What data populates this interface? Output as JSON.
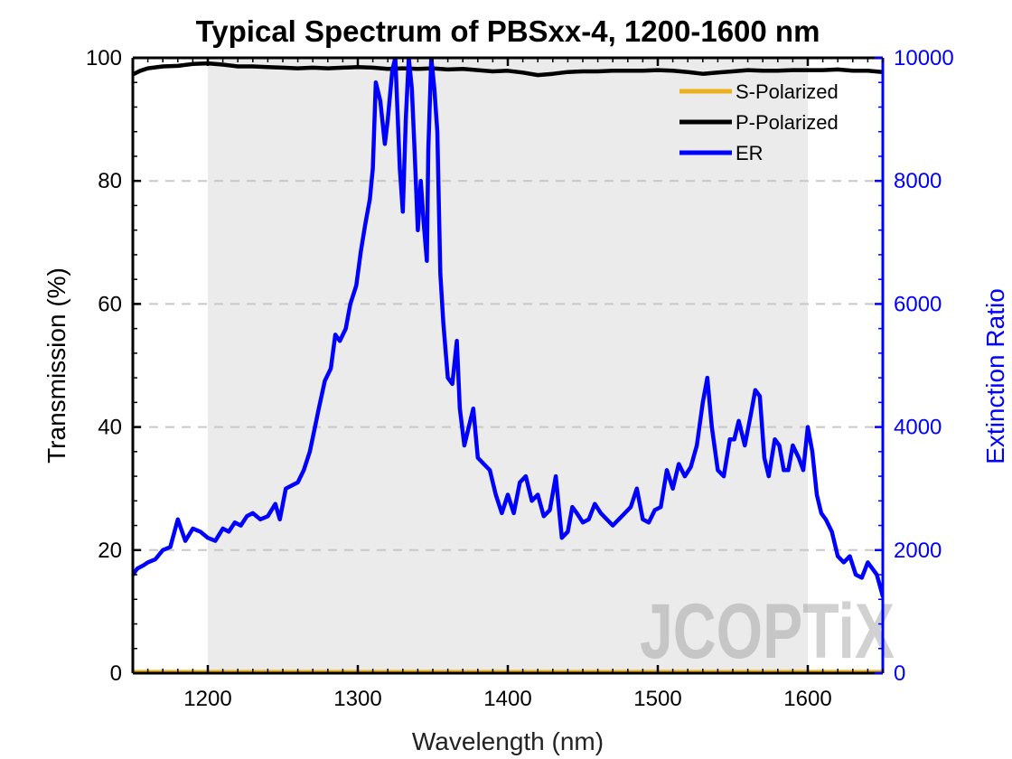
{
  "chart_data": {
    "type": "line",
    "title": "Typical Spectrum of PBSxx-4, 1200-1600 nm",
    "xlabel": "Wavelength (nm)",
    "ylabel_left": "Transmission (%)",
    "ylabel_right": "Extinction Ratio",
    "xlim": [
      1150,
      1650
    ],
    "ylim_left": [
      0,
      100
    ],
    "ylim_right": [
      0,
      10000
    ],
    "x_ticks": [
      1200,
      1300,
      1400,
      1500,
      1600
    ],
    "y_ticks_left": [
      0,
      20,
      40,
      60,
      80,
      100
    ],
    "y_ticks_right": [
      0,
      2000,
      4000,
      6000,
      8000,
      10000
    ],
    "grid": "horizontal dashed",
    "legend_position": "top-right",
    "shaded_band": [
      1200,
      1600
    ],
    "colors": {
      "s_polarized": "#edb120",
      "p_polarized": "#000000",
      "er": "#0000ff",
      "right_axis": "#0000ff",
      "shaded_band": "#ebebeb",
      "grid": "#c8c8c8"
    },
    "series": [
      {
        "name": "S-Polarized",
        "axis": "left",
        "x": [
          1150,
          1650
        ],
        "values": [
          0.2,
          0.2
        ]
      },
      {
        "name": "P-Polarized",
        "axis": "left",
        "x": [
          1150,
          1155,
          1160,
          1170,
          1180,
          1190,
          1200,
          1210,
          1220,
          1230,
          1240,
          1250,
          1260,
          1270,
          1280,
          1290,
          1300,
          1310,
          1320,
          1330,
          1340,
          1350,
          1360,
          1370,
          1380,
          1390,
          1400,
          1410,
          1420,
          1430,
          1440,
          1450,
          1460,
          1470,
          1480,
          1490,
          1500,
          1510,
          1520,
          1530,
          1540,
          1550,
          1560,
          1570,
          1580,
          1590,
          1600,
          1610,
          1620,
          1630,
          1640,
          1650
        ],
        "values": [
          97.3,
          97.9,
          98.3,
          98.6,
          98.7,
          99.0,
          99.1,
          98.9,
          98.6,
          98.6,
          98.5,
          98.4,
          98.3,
          98.4,
          98.3,
          98.4,
          98.5,
          98.4,
          98.2,
          98.3,
          98.2,
          98.3,
          98.1,
          98.2,
          98.0,
          97.8,
          97.9,
          97.6,
          97.2,
          97.4,
          97.7,
          97.8,
          97.8,
          97.9,
          97.9,
          97.9,
          98.0,
          97.9,
          97.7,
          97.4,
          97.6,
          97.8,
          98.0,
          97.9,
          97.9,
          98.0,
          98.0,
          98.0,
          98.1,
          97.9,
          97.9,
          97.7
        ]
      },
      {
        "name": "ER",
        "axis": "right",
        "x": [
          1150,
          1153,
          1157,
          1160,
          1165,
          1170,
          1175,
          1180,
          1185,
          1190,
          1195,
          1200,
          1205,
          1210,
          1214,
          1218,
          1222,
          1226,
          1230,
          1235,
          1240,
          1245,
          1248,
          1252,
          1256,
          1260,
          1264,
          1268,
          1271,
          1274,
          1278,
          1282,
          1285,
          1288,
          1292,
          1295,
          1299,
          1302,
          1305,
          1308,
          1310,
          1312,
          1315,
          1318,
          1320,
          1323,
          1325,
          1328,
          1330,
          1332,
          1334,
          1336,
          1338,
          1340,
          1342,
          1344,
          1346,
          1347,
          1349,
          1351,
          1353,
          1355,
          1357,
          1360,
          1363,
          1366,
          1368,
          1371,
          1374,
          1377,
          1380,
          1384,
          1388,
          1392,
          1396,
          1400,
          1404,
          1408,
          1412,
          1416,
          1420,
          1424,
          1428,
          1432,
          1436,
          1440,
          1443,
          1446,
          1450,
          1454,
          1458,
          1462,
          1466,
          1470,
          1474,
          1478,
          1482,
          1486,
          1490,
          1494,
          1498,
          1502,
          1506,
          1510,
          1514,
          1518,
          1522,
          1526,
          1530,
          1533,
          1536,
          1540,
          1544,
          1548,
          1551,
          1554,
          1558,
          1562,
          1565,
          1568,
          1571,
          1574,
          1578,
          1581,
          1584,
          1587,
          1590,
          1594,
          1597,
          1600,
          1603,
          1606,
          1609,
          1612,
          1616,
          1620,
          1624,
          1628,
          1632,
          1636,
          1640,
          1643,
          1646,
          1650
        ],
        "values": [
          1600,
          1700,
          1750,
          1800,
          1850,
          2000,
          2050,
          2500,
          2150,
          2350,
          2300,
          2200,
          2150,
          2350,
          2300,
          2450,
          2400,
          2550,
          2600,
          2500,
          2550,
          2750,
          2500,
          3000,
          3050,
          3100,
          3300,
          3600,
          3950,
          4300,
          4750,
          4950,
          5500,
          5400,
          5600,
          6000,
          6300,
          6850,
          7300,
          7700,
          8200,
          9600,
          9300,
          8600,
          9000,
          9800,
          10000,
          8200,
          7500,
          9000,
          10000,
          9500,
          8400,
          7200,
          8000,
          7300,
          6700,
          8500,
          10000,
          9500,
          8800,
          6500,
          5700,
          4800,
          4700,
          5400,
          4300,
          3700,
          4000,
          4300,
          3500,
          3400,
          3300,
          2900,
          2600,
          2900,
          2600,
          3100,
          3200,
          2800,
          2900,
          2550,
          2650,
          3200,
          2200,
          2300,
          2700,
          2600,
          2450,
          2500,
          2750,
          2600,
          2500,
          2400,
          2500,
          2600,
          2700,
          3000,
          2500,
          2450,
          2650,
          2700,
          3300,
          3000,
          3400,
          3200,
          3350,
          3700,
          4400,
          4800,
          4000,
          3300,
          3200,
          3800,
          3800,
          4100,
          3700,
          4200,
          4600,
          4500,
          3500,
          3200,
          3800,
          3700,
          3300,
          3300,
          3700,
          3500,
          3300,
          4000,
          3600,
          2900,
          2600,
          2500,
          2300,
          1900,
          1800,
          1900,
          1600,
          1550,
          1800,
          1700,
          1600,
          1250
        ]
      }
    ]
  },
  "watermark": "JCOPTiX"
}
